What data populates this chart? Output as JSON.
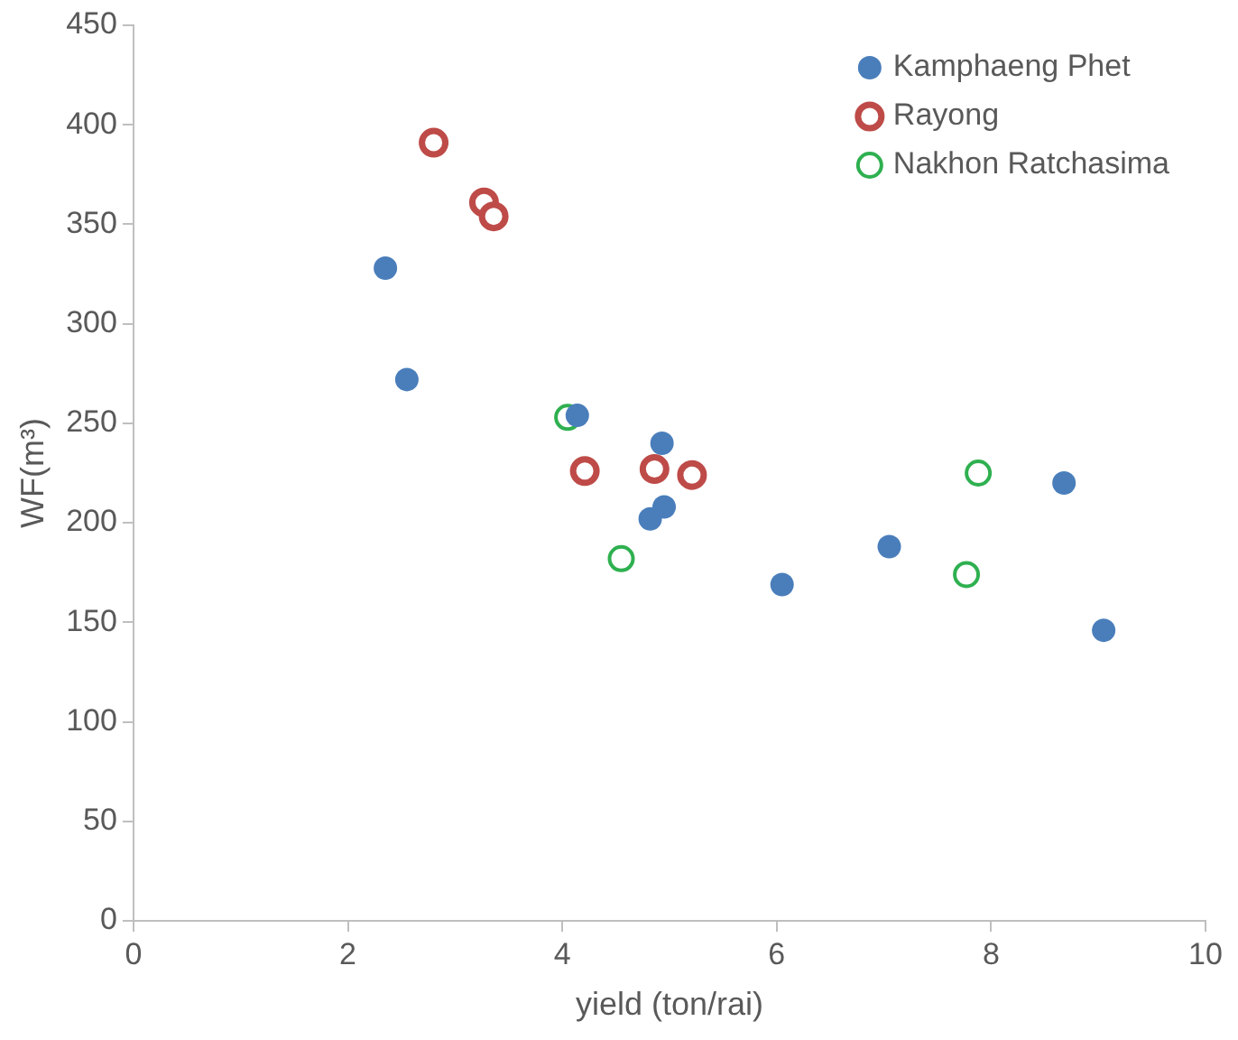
{
  "chart_data": {
    "type": "scatter",
    "xlabel": "yield (ton/rai)",
    "ylabel": "WF(m³)",
    "xlim": [
      0,
      10
    ],
    "xticks": [
      0,
      2,
      4,
      6,
      8,
      10
    ],
    "ylim": [
      0,
      450
    ],
    "yticks": [
      0,
      50,
      100,
      150,
      200,
      250,
      300,
      350,
      400,
      450
    ],
    "grid": false,
    "legend": "top right",
    "marker": "circle",
    "series": [
      {
        "name": "Kamphaeng Phet",
        "color": "#4a7ebb",
        "x": [
          2.35,
          2.55,
          4.14,
          4.93,
          4.95,
          4.82,
          6.05,
          7.05,
          8.68,
          9.05
        ],
        "values": [
          328,
          272,
          254,
          240,
          208,
          202,
          169,
          188,
          220,
          146
        ]
      },
      {
        "name": "Rayong",
        "color": "#be4b48",
        "x": [
          2.8,
          3.27,
          3.36,
          4.21,
          4.86,
          5.21
        ],
        "values": [
          391,
          361,
          354,
          226,
          227,
          224
        ]
      },
      {
        "name": "Nakhon Ratchasima",
        "color": "#2fb050",
        "x": [
          4.05,
          4.55,
          7.88,
          7.77
        ],
        "values": [
          253,
          182,
          225,
          174
        ]
      }
    ]
  }
}
